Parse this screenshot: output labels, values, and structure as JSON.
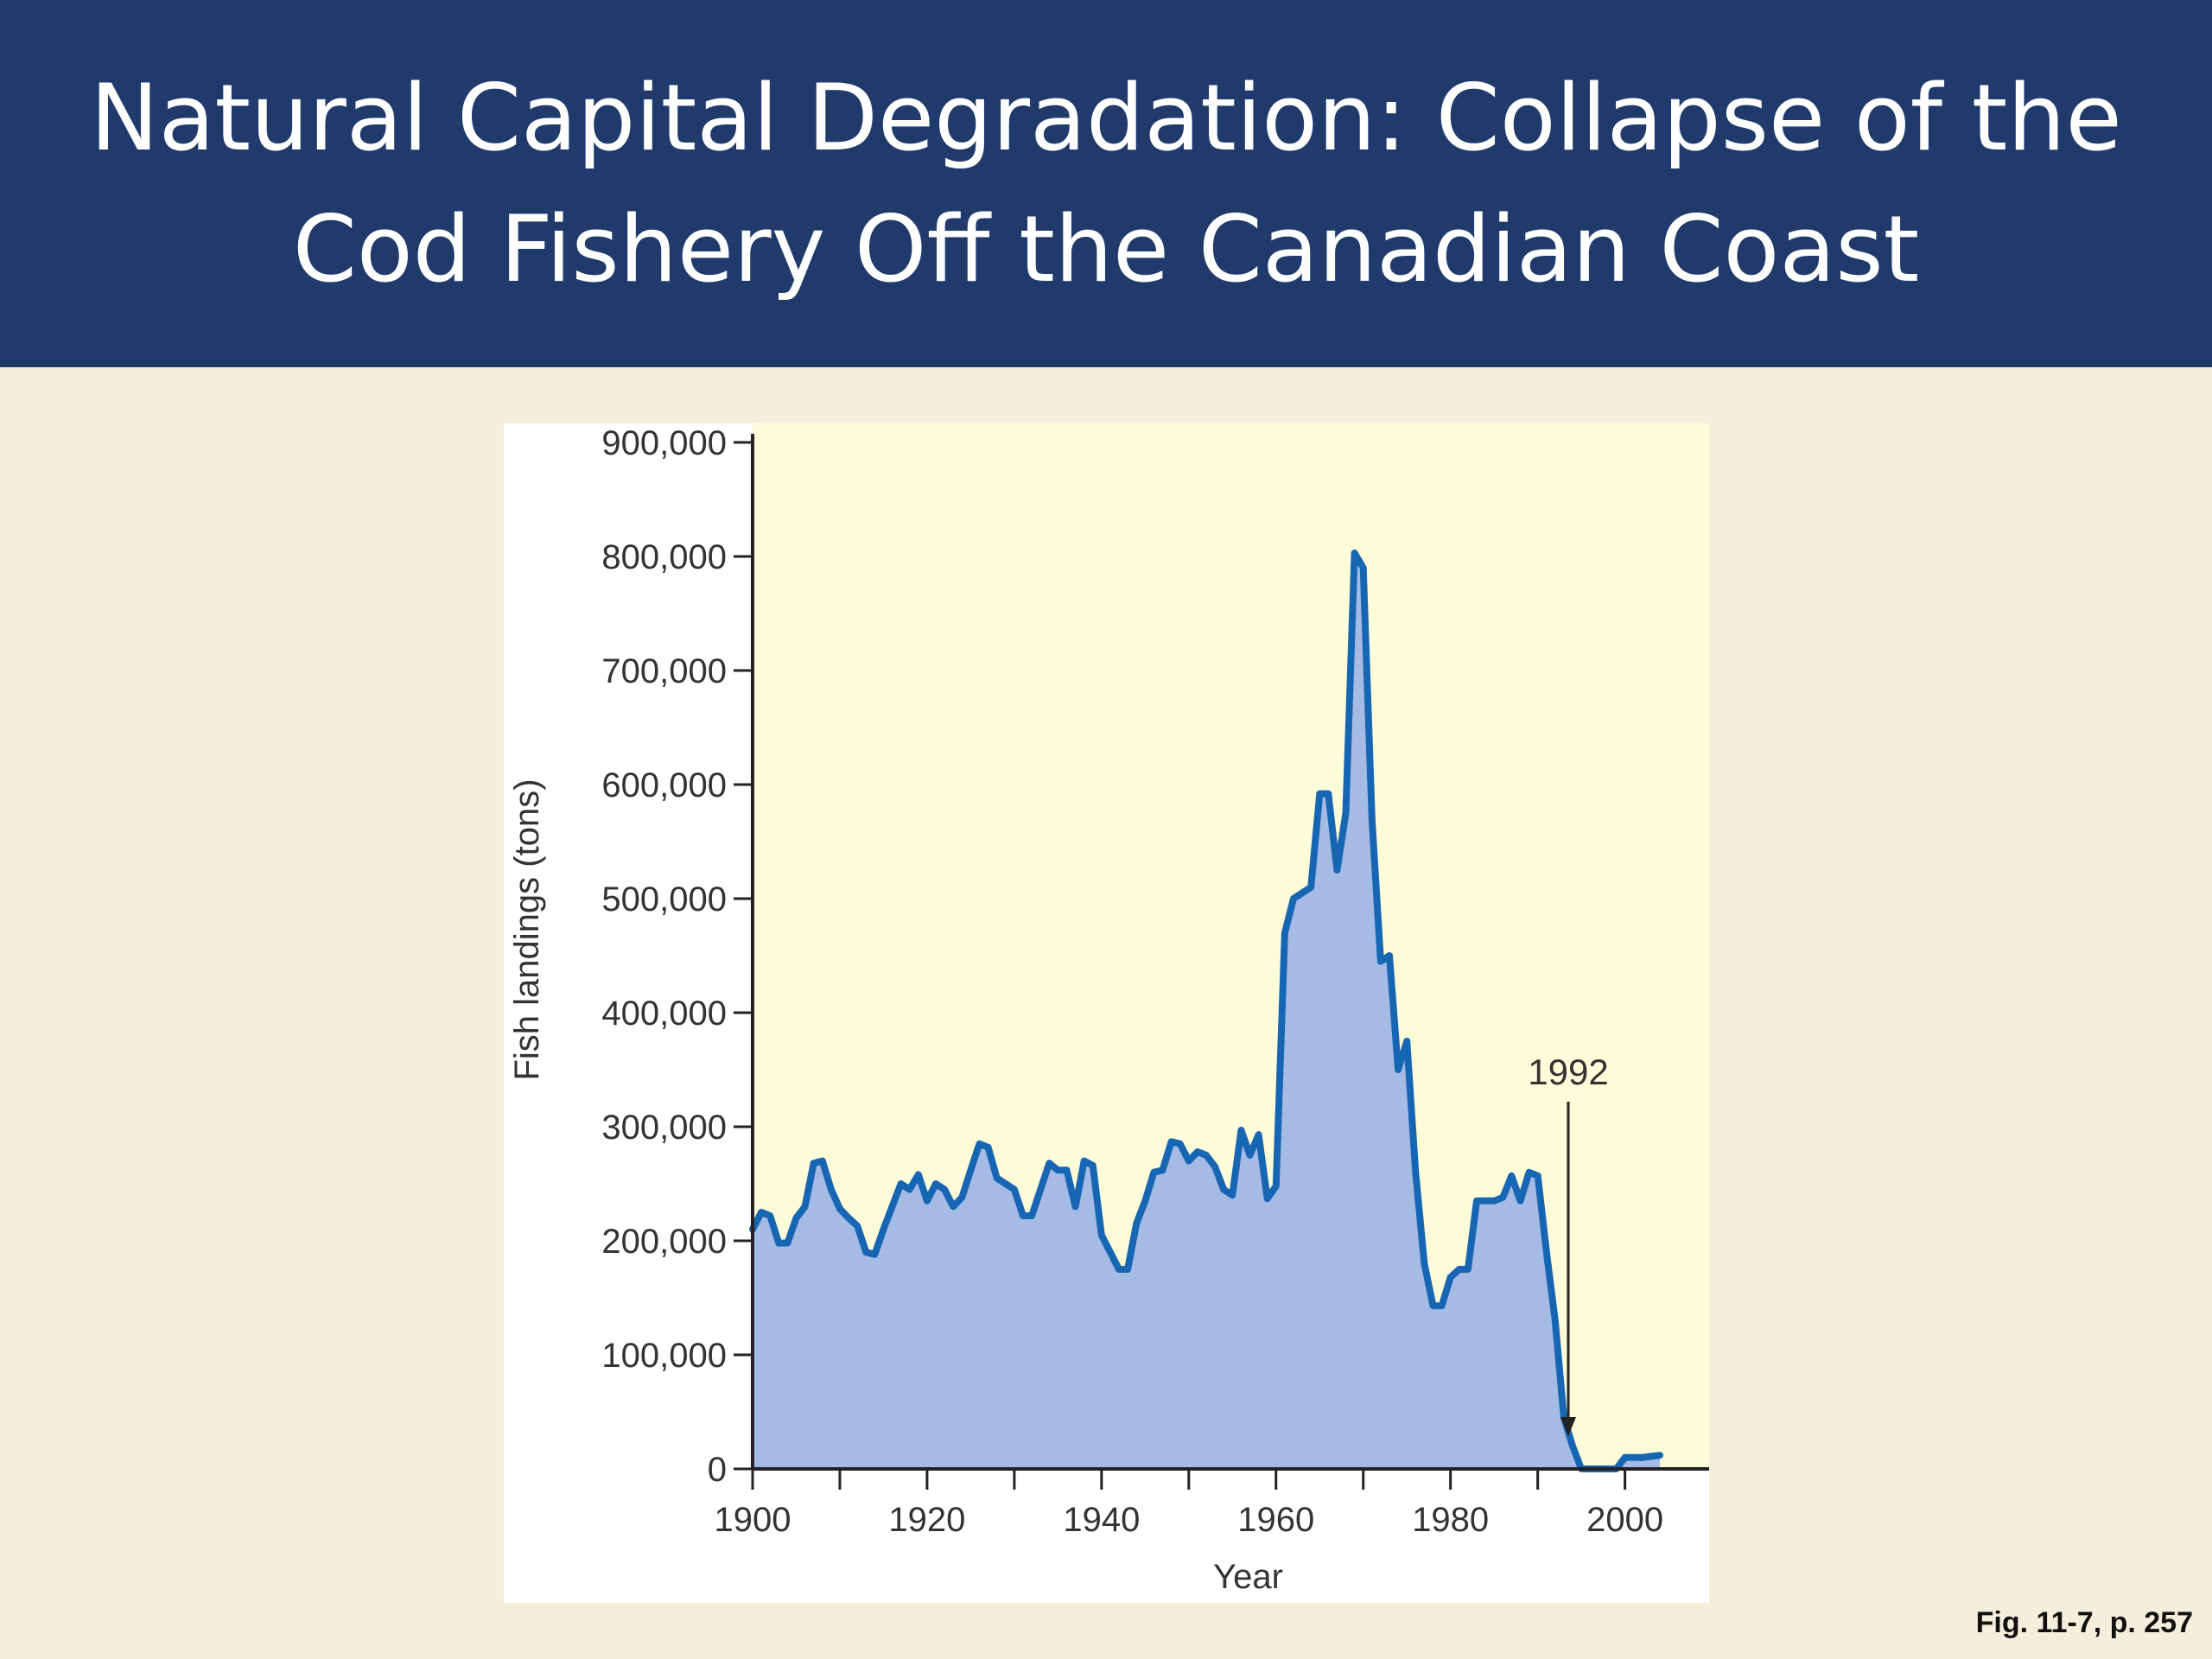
{
  "slide": {
    "title": "Natural Capital Degradation: Collapse of the\nCod Fishery Off the Canadian Coast",
    "figure_ref": "Fig. 11-7, p. 257"
  },
  "colors": {
    "title_bar": "#1f3a6b",
    "slide_bg": "#f5eedb",
    "plot_bg": "#fdfcd9",
    "area_fill": "#a6bbe4",
    "line": "#1766b4",
    "axis": "#222222"
  },
  "chart_data": {
    "type": "area",
    "title": "",
    "xlabel": "Year",
    "ylabel": "Fish landings (tons)",
    "xlim": [
      1900,
      2005
    ],
    "ylim": [
      0,
      900000
    ],
    "x_ticks": [
      1900,
      1920,
      1940,
      1960,
      1980,
      2000
    ],
    "x_minor_ticks": [
      1910,
      1930,
      1950,
      1970,
      1990
    ],
    "y_ticks": [
      0,
      100000,
      200000,
      300000,
      400000,
      500000,
      600000,
      700000,
      800000,
      900000
    ],
    "y_tick_labels": [
      "0",
      "100,000",
      "200,000",
      "300,000",
      "400,000",
      "500,000",
      "600,000",
      "700,000",
      "800,000",
      "900,000"
    ],
    "x_tick_labels": [
      "1900",
      "1920",
      "1940",
      "1960",
      "1980",
      "2000"
    ],
    "annotation": {
      "label": "1992",
      "x": 1993.5,
      "type": "arrow"
    },
    "series": [
      {
        "x": [
          1900,
          1901,
          1902,
          1903,
          1904,
          1905,
          1906,
          1907,
          1908,
          1909,
          1910,
          1911,
          1912,
          1913,
          1914,
          1915,
          1916,
          1917,
          1918,
          1919,
          1920,
          1921,
          1922,
          1923,
          1924,
          1925,
          1926,
          1927,
          1928,
          1929,
          1930,
          1931,
          1932,
          1933,
          1934,
          1935,
          1936,
          1937,
          1938,
          1939,
          1940,
          1941,
          1942,
          1943,
          1944,
          1945,
          1946,
          1947,
          1948,
          1949,
          1950,
          1951,
          1952,
          1953,
          1954,
          1955,
          1956,
          1957,
          1958,
          1959,
          1960,
          1961,
          1962,
          1963,
          1964,
          1965,
          1966,
          1967,
          1968,
          1969,
          1970,
          1971,
          1972,
          1973,
          1974,
          1975,
          1976,
          1977,
          1978,
          1979,
          1980,
          1981,
          1982,
          1983,
          1984,
          1985,
          1986,
          1987,
          1988,
          1989,
          1990,
          1991,
          1992,
          1993,
          1994,
          1995,
          1996,
          1997,
          1998,
          1999,
          2000,
          2001,
          2002,
          2003,
          2004
        ],
        "values": [
          210000,
          225000,
          222000,
          198000,
          198000,
          220000,
          230000,
          268000,
          270000,
          245000,
          228000,
          220000,
          213000,
          190000,
          188000,
          210000,
          230000,
          250000,
          245000,
          258000,
          235000,
          250000,
          245000,
          230000,
          238000,
          262000,
          285000,
          282000,
          255000,
          250000,
          245000,
          222000,
          222000,
          245000,
          268000,
          262000,
          262000,
          230000,
          270000,
          266000,
          205000,
          190000,
          175000,
          175000,
          215000,
          235000,
          260000,
          262000,
          287000,
          285000,
          270000,
          278000,
          275000,
          265000,
          245000,
          240000,
          297000,
          275000,
          293000,
          237000,
          248000,
          470000,
          500000,
          505000,
          510000,
          592000,
          592000,
          525000,
          575000,
          803000,
          790000,
          570000,
          445000,
          450000,
          350000,
          375000,
          260000,
          180000,
          143000,
          143000,
          168000,
          175000,
          175000,
          235000,
          235000,
          235000,
          238000,
          257000,
          235000,
          260000,
          257000,
          190000,
          130000,
          45000,
          20000,
          0,
          0,
          0,
          0,
          0,
          10000,
          10000,
          10000,
          11000,
          12000
        ]
      }
    ]
  }
}
